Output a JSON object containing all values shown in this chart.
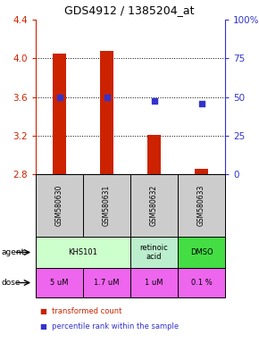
{
  "title": "GDS4912 / 1385204_at",
  "samples": [
    "GSM580630",
    "GSM580631",
    "GSM580632",
    "GSM580633"
  ],
  "bar_values": [
    4.05,
    4.08,
    3.21,
    2.855
  ],
  "bar_bottom": 2.8,
  "blue_dot_values": [
    3.6,
    3.6,
    3.555,
    3.535
  ],
  "ylim": [
    2.8,
    4.4
  ],
  "yticks_left": [
    2.8,
    3.2,
    3.6,
    4.0,
    4.4
  ],
  "yticks_right_pct": [
    0,
    25,
    50,
    75,
    100
  ],
  "ytick_labels_right": [
    "0",
    "25",
    "50",
    "75",
    "100%"
  ],
  "bar_color": "#cc2200",
  "dot_color": "#3333cc",
  "agent_spans": [
    [
      0,
      2,
      "KHS101",
      "#ccffcc"
    ],
    [
      2,
      3,
      "retinoic\nacid",
      "#bbeecc"
    ],
    [
      3,
      4,
      "DMSO",
      "#44dd44"
    ]
  ],
  "dose_labels": [
    "5 uM",
    "1.7 uM",
    "1 uM",
    "0.1 %"
  ],
  "dose_color": "#ee66ee",
  "sample_box_color": "#cccccc",
  "left_tick_color": "#cc2200",
  "right_tick_color": "#3333cc",
  "grid_dotted_at": [
    4.0,
    3.6,
    3.2
  ],
  "bar_width": 0.28
}
